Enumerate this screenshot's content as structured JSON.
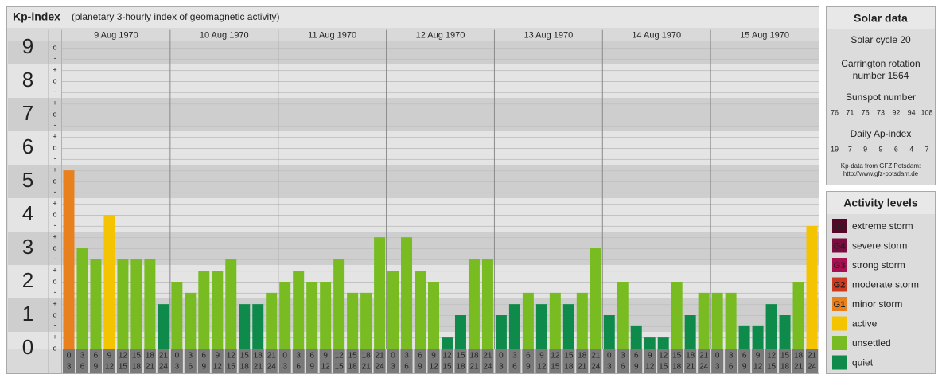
{
  "chart_data": {
    "type": "bar",
    "title": "Kp-index",
    "subtitle": "(planetary 3-hourly index of geomagnetic activity)",
    "categories": [
      {
        "start": 0,
        "end": 3
      },
      {
        "start": 3,
        "end": 6
      },
      {
        "start": 6,
        "end": 9
      },
      {
        "start": 9,
        "end": 12
      },
      {
        "start": 12,
        "end": 15
      },
      {
        "start": 15,
        "end": 18
      },
      {
        "start": 18,
        "end": 21
      },
      {
        "start": 21,
        "end": 24
      }
    ],
    "series": [
      {
        "name": "9 Aug 1970",
        "values": [
          5.33,
          3,
          2.67,
          4,
          2.67,
          2.67,
          2.67,
          1.33
        ],
        "colors": [
          "#e8801e",
          "#78bc22",
          "#78bc22",
          "#f5c400",
          "#78bc22",
          "#78bc22",
          "#78bc22",
          "#0e8a4a"
        ]
      },
      {
        "name": "10 Aug 1970",
        "values": [
          2,
          1.67,
          2.33,
          2.33,
          2.67,
          1.33,
          1.33,
          1.67
        ],
        "colors": [
          "#78bc22",
          "#78bc22",
          "#78bc22",
          "#78bc22",
          "#78bc22",
          "#0e8a4a",
          "#0e8a4a",
          "#78bc22"
        ]
      },
      {
        "name": "11 Aug 1970",
        "values": [
          2,
          2.33,
          2,
          2,
          2.67,
          1.67,
          1.67,
          3.33
        ],
        "colors": [
          "#78bc22",
          "#78bc22",
          "#78bc22",
          "#78bc22",
          "#78bc22",
          "#78bc22",
          "#78bc22",
          "#78bc22"
        ]
      },
      {
        "name": "12 Aug 1970",
        "values": [
          2.33,
          3.33,
          2.33,
          2,
          0.33,
          1,
          2.67,
          2.67
        ],
        "colors": [
          "#78bc22",
          "#78bc22",
          "#78bc22",
          "#78bc22",
          "#0e8a4a",
          "#0e8a4a",
          "#78bc22",
          "#78bc22"
        ]
      },
      {
        "name": "13 Aug 1970",
        "values": [
          1,
          1.33,
          1.67,
          1.33,
          1.67,
          1.33,
          1.67,
          3
        ],
        "colors": [
          "#0e8a4a",
          "#0e8a4a",
          "#78bc22",
          "#0e8a4a",
          "#78bc22",
          "#0e8a4a",
          "#78bc22",
          "#78bc22"
        ]
      },
      {
        "name": "14 Aug 1970",
        "values": [
          1,
          2,
          0.67,
          0.33,
          0.33,
          2,
          1,
          1.67
        ],
        "colors": [
          "#0e8a4a",
          "#78bc22",
          "#0e8a4a",
          "#0e8a4a",
          "#0e8a4a",
          "#78bc22",
          "#0e8a4a",
          "#78bc22"
        ]
      },
      {
        "name": "15 Aug 1970",
        "values": [
          1.67,
          1.67,
          0.67,
          0.67,
          1.33,
          1,
          2,
          3.67
        ],
        "colors": [
          "#78bc22",
          "#78bc22",
          "#0e8a4a",
          "#0e8a4a",
          "#0e8a4a",
          "#0e8a4a",
          "#78bc22",
          "#f5c400"
        ]
      }
    ],
    "ylim": [
      0,
      9.2
    ],
    "yticks": [
      0,
      1,
      2,
      3,
      4,
      5,
      6,
      7,
      8,
      9
    ],
    "yminorticks": [
      {
        "value": 0,
        "label": "o"
      },
      {
        "value": 0.33,
        "label": "+"
      },
      {
        "value": 0.67,
        "label": "-"
      },
      {
        "value": 1,
        "label": "o"
      },
      {
        "value": 1.33,
        "label": "+"
      },
      {
        "value": 1.67,
        "label": "-"
      },
      {
        "value": 2,
        "label": "o"
      },
      {
        "value": 2.33,
        "label": "+"
      },
      {
        "value": 2.67,
        "label": "-"
      },
      {
        "value": 3,
        "label": "o"
      },
      {
        "value": 3.33,
        "label": "+"
      },
      {
        "value": 3.67,
        "label": "-"
      },
      {
        "value": 4,
        "label": "o"
      },
      {
        "value": 4.33,
        "label": "+"
      },
      {
        "value": 4.67,
        "label": "-"
      },
      {
        "value": 5,
        "label": "o"
      },
      {
        "value": 5.33,
        "label": "+"
      },
      {
        "value": 5.67,
        "label": "-"
      },
      {
        "value": 6,
        "label": "o"
      },
      {
        "value": 6.33,
        "label": "+"
      },
      {
        "value": 6.67,
        "label": "-"
      },
      {
        "value": 7,
        "label": "o"
      },
      {
        "value": 7.33,
        "label": "+"
      },
      {
        "value": 7.67,
        "label": "-"
      },
      {
        "value": 8,
        "label": "o"
      },
      {
        "value": 8.33,
        "label": "+"
      },
      {
        "value": 8.67,
        "label": "-"
      },
      {
        "value": 9,
        "label": "o"
      }
    ],
    "grid": true,
    "activity_levels": {
      "title": "Activity levels",
      "items": [
        {
          "badge": "G5",
          "label": "extreme storm",
          "color": "#55072a"
        },
        {
          "badge": "G4",
          "label": "severe storm",
          "color": "#7c0c40"
        },
        {
          "badge": "G3",
          "label": "strong storm",
          "color": "#a8104f"
        },
        {
          "badge": "G2",
          "label": "moderate storm",
          "color": "#cc3b1f"
        },
        {
          "badge": "G1",
          "label": "minor storm",
          "color": "#e8801e"
        },
        {
          "label": "active",
          "color": "#f5c400"
        },
        {
          "label": "unsettled",
          "color": "#78bc22"
        },
        {
          "label": "quiet",
          "color": "#0e8a4a"
        }
      ]
    }
  },
  "solar_data": {
    "title": "Solar data",
    "cycle": "Solar cycle 20",
    "carrington": [
      "Carrington rotation",
      "number 1564"
    ],
    "sunspot_title": "Sunspot number",
    "sunspot_numbers": [
      76,
      71,
      75,
      73,
      92,
      94,
      108
    ],
    "ap_title": "Daily Ap-index",
    "ap_values": [
      19,
      7,
      9,
      9,
      6,
      4,
      7
    ],
    "source": [
      "Kp-data from GFZ Potsdam:",
      "http://www.gfz-potsdam.de"
    ]
  }
}
